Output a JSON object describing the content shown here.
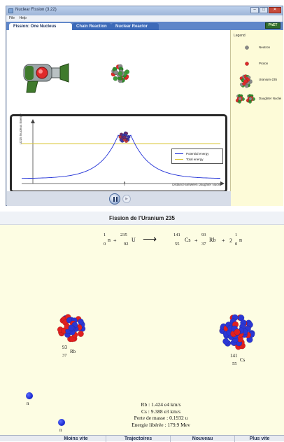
{
  "window": {
    "title": "Nuclear Fission (3.22)",
    "menu": [
      "File",
      "Help"
    ],
    "tabs": [
      "Fission: One Nucleus",
      "Chain Reaction",
      "Nuclear Reactor"
    ],
    "logo": "PhET"
  },
  "legend": {
    "title": "Legend",
    "items": [
      {
        "label": "Neutron"
      },
      {
        "label": "Proton"
      },
      {
        "label": "Uranium-235"
      },
      {
        "label": "Daughter Nuclei"
      }
    ]
  },
  "graph": {
    "ylabel": "U235 Nucleus Energy",
    "xlabel": "Distance Between Daughter Nuclei",
    "zero": "0",
    "legend": [
      "Potential energy",
      "Total energy"
    ],
    "colors": {
      "potential": "#1f2fd6",
      "total": "#d9c533"
    }
  },
  "controls": {
    "step_label": "▶"
  },
  "panel": {
    "title": "Fission de l'Uranium 235",
    "equation": {
      "n1": {
        "a": "1",
        "z": "0",
        "sym": "n"
      },
      "u": {
        "a": "235",
        "z": "92",
        "sym": "U"
      },
      "cs": {
        "a": "141",
        "z": "55",
        "sym": "Cs"
      },
      "rb": {
        "a": "93",
        "z": "37",
        "sym": "Rb"
      },
      "n2": {
        "coef": "2",
        "a": "1",
        "z": "0",
        "sym": "n"
      },
      "arrow": "⟶",
      "plus": "+"
    },
    "rb_label": {
      "a": "93",
      "z": "37",
      "sym": "Rb"
    },
    "cs_label": {
      "a": "141",
      "z": "55",
      "sym": "Cs"
    },
    "neutron_label": "n",
    "stats": [
      "Rb : 1.424 e4 km/s",
      "Cs : 9.388 e3 km/s",
      "Perte de masse : 0.1932 u",
      "Energie libérée : 179.9 Mev"
    ],
    "buttons": [
      "Moins vite",
      "Trajectoires",
      "Nouveau",
      "Plus vite"
    ]
  }
}
